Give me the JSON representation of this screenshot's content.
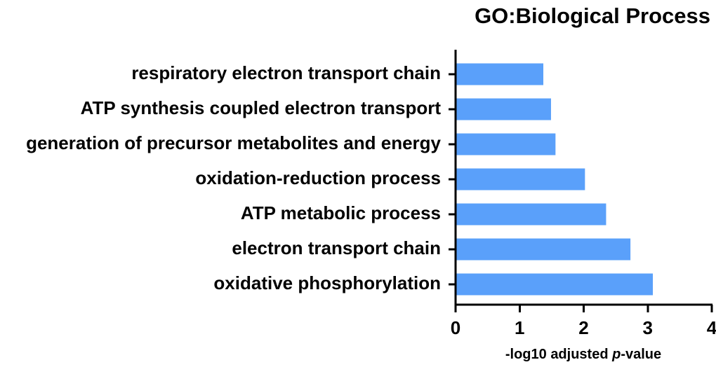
{
  "chart_data": {
    "type": "bar",
    "orientation": "horizontal",
    "title": "GO:Biological Process",
    "categories": [
      "respiratory electron transport chain",
      "ATP synthesis coupled electron transport",
      "generation of precursor metabolites and energy",
      "oxidation-reduction process",
      "ATP metabolic process",
      "electron transport chain",
      "oxidative phosphorylation"
    ],
    "values": [
      1.37,
      1.49,
      1.56,
      2.02,
      2.35,
      2.73,
      3.08
    ],
    "xlabel": {
      "prefix": "-log10 adjusted ",
      "italic": "p",
      "suffix": "-value"
    },
    "ylabel": "",
    "xlim": [
      0,
      4
    ],
    "xticks": [
      "0",
      "1",
      "2",
      "3",
      "4"
    ],
    "grid": false,
    "bar_color": "#5aa0fa"
  }
}
